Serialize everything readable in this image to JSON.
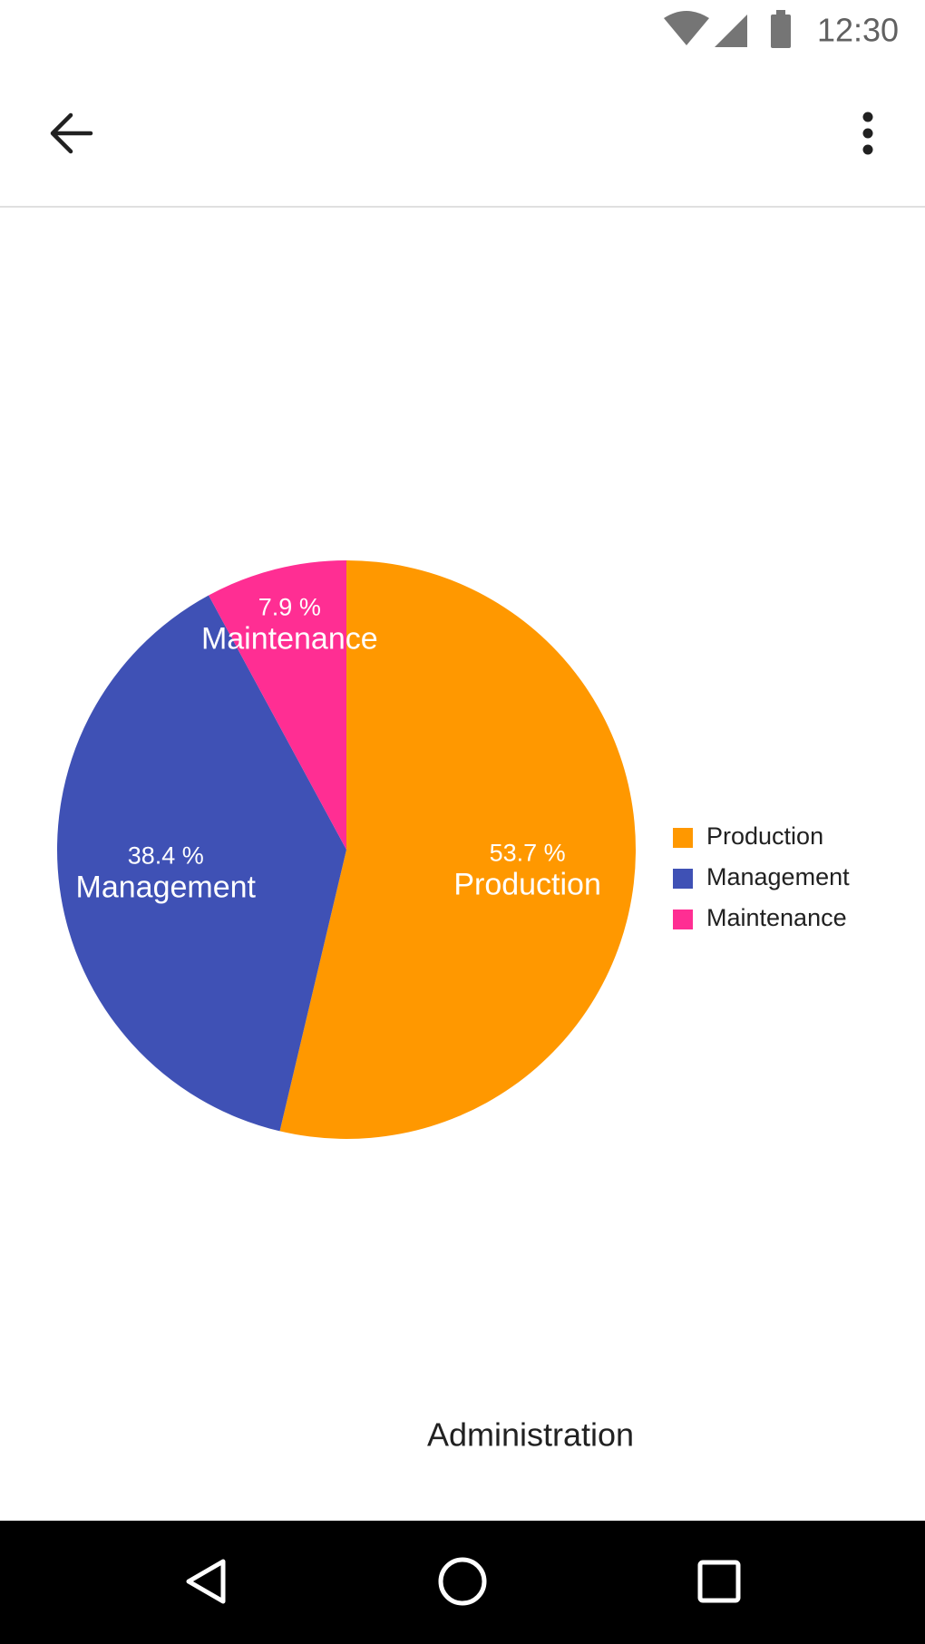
{
  "status_bar": {
    "time": "12:30"
  },
  "chart_data": {
    "type": "pie",
    "categories": [
      "Production",
      "Management",
      "Maintenance"
    ],
    "values": [
      53.7,
      38.4,
      7.9
    ],
    "value_labels": [
      "53.7 %",
      "38.4 %",
      "7.9 %"
    ],
    "colors": [
      "#ff9800",
      "#3f51b5",
      "#ff2e93"
    ],
    "legend": "right"
  },
  "caption": "Administration"
}
